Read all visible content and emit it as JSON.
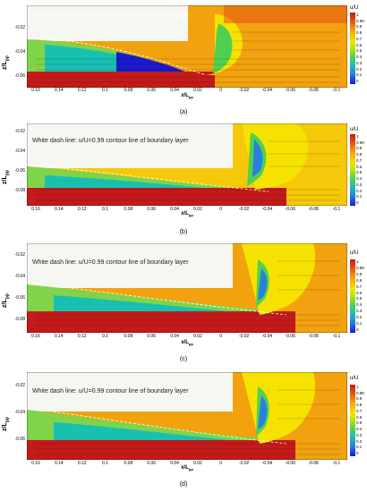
{
  "note": "White dash line: u/U=0.99 contour line of boundary layer",
  "colorbar_title": "u/U",
  "xlabel_base": "x/L",
  "xlabel_sub": "pp",
  "ylabel_base": "z/L",
  "ylabel_sub": "pp",
  "panels": [
    {
      "caption": "(a)",
      "yticks": [
        "-0.02",
        "-0.04",
        "-0.06"
      ],
      "xticks": [
        "0.16",
        "0.14",
        "0.12",
        "0.1",
        "0.08",
        "0.06",
        "0.04",
        "0.02",
        "0",
        "-0.02",
        "-0.04",
        "-0.06",
        "-0.08",
        "-0.1"
      ],
      "cb_ticks": [
        "1",
        "0.99",
        "0.9",
        "0.8",
        "0.7",
        "0.6",
        "0.5",
        "0.4",
        "0.3",
        "0.2",
        "0.1",
        "0"
      ]
    },
    {
      "caption": "(b)",
      "yticks": [
        "-0.02",
        "-0.04",
        "-0.06",
        "-0.08"
      ],
      "xticks": [
        "0.16",
        "0.14",
        "0.12",
        "0.1",
        "0.08",
        "0.06",
        "0.04",
        "0.02",
        "0",
        "-0.02",
        "-0.04",
        "-0.06",
        "-0.08",
        "-0.1"
      ],
      "cb_ticks": [
        "1",
        "0.99",
        "0.9",
        "0.8",
        "0.7",
        "0.6",
        "0.5",
        "0.4",
        "0.3",
        "0.2",
        "0.1",
        "0"
      ]
    },
    {
      "caption": "(c)",
      "yticks": [
        "-0.02",
        "-0.04",
        "-0.06",
        "-0.08"
      ],
      "xticks": [
        "0.16",
        "0.14",
        "0.12",
        "0.1",
        "0.08",
        "0.06",
        "0.04",
        "0.02",
        "0",
        "-0.02",
        "-0.04",
        "-0.06",
        "-0.08",
        "-0.1"
      ],
      "cb_ticks": [
        "1",
        "0.99",
        "0.9",
        "0.8",
        "0.7",
        "0.6",
        "0.5",
        "0.4",
        "0.3",
        "0.2",
        "0.1",
        "0"
      ]
    },
    {
      "caption": "(d)",
      "yticks": [
        "-0.02",
        "-0.04",
        "-0.06"
      ],
      "xticks": [
        "0.16",
        "0.14",
        "0.12",
        "0.1",
        "0.08",
        "0.06",
        "0.04",
        "0.02",
        "0",
        "-0.02",
        "-0.04",
        "-0.06",
        "-0.08",
        "-0.1"
      ],
      "cb_ticks": [
        "1",
        "0.99",
        "0.9",
        "0.8",
        "0.7",
        "0.6",
        "0.5",
        "0.4",
        "0.3",
        "0.2",
        "0.1",
        "0"
      ]
    }
  ]
}
